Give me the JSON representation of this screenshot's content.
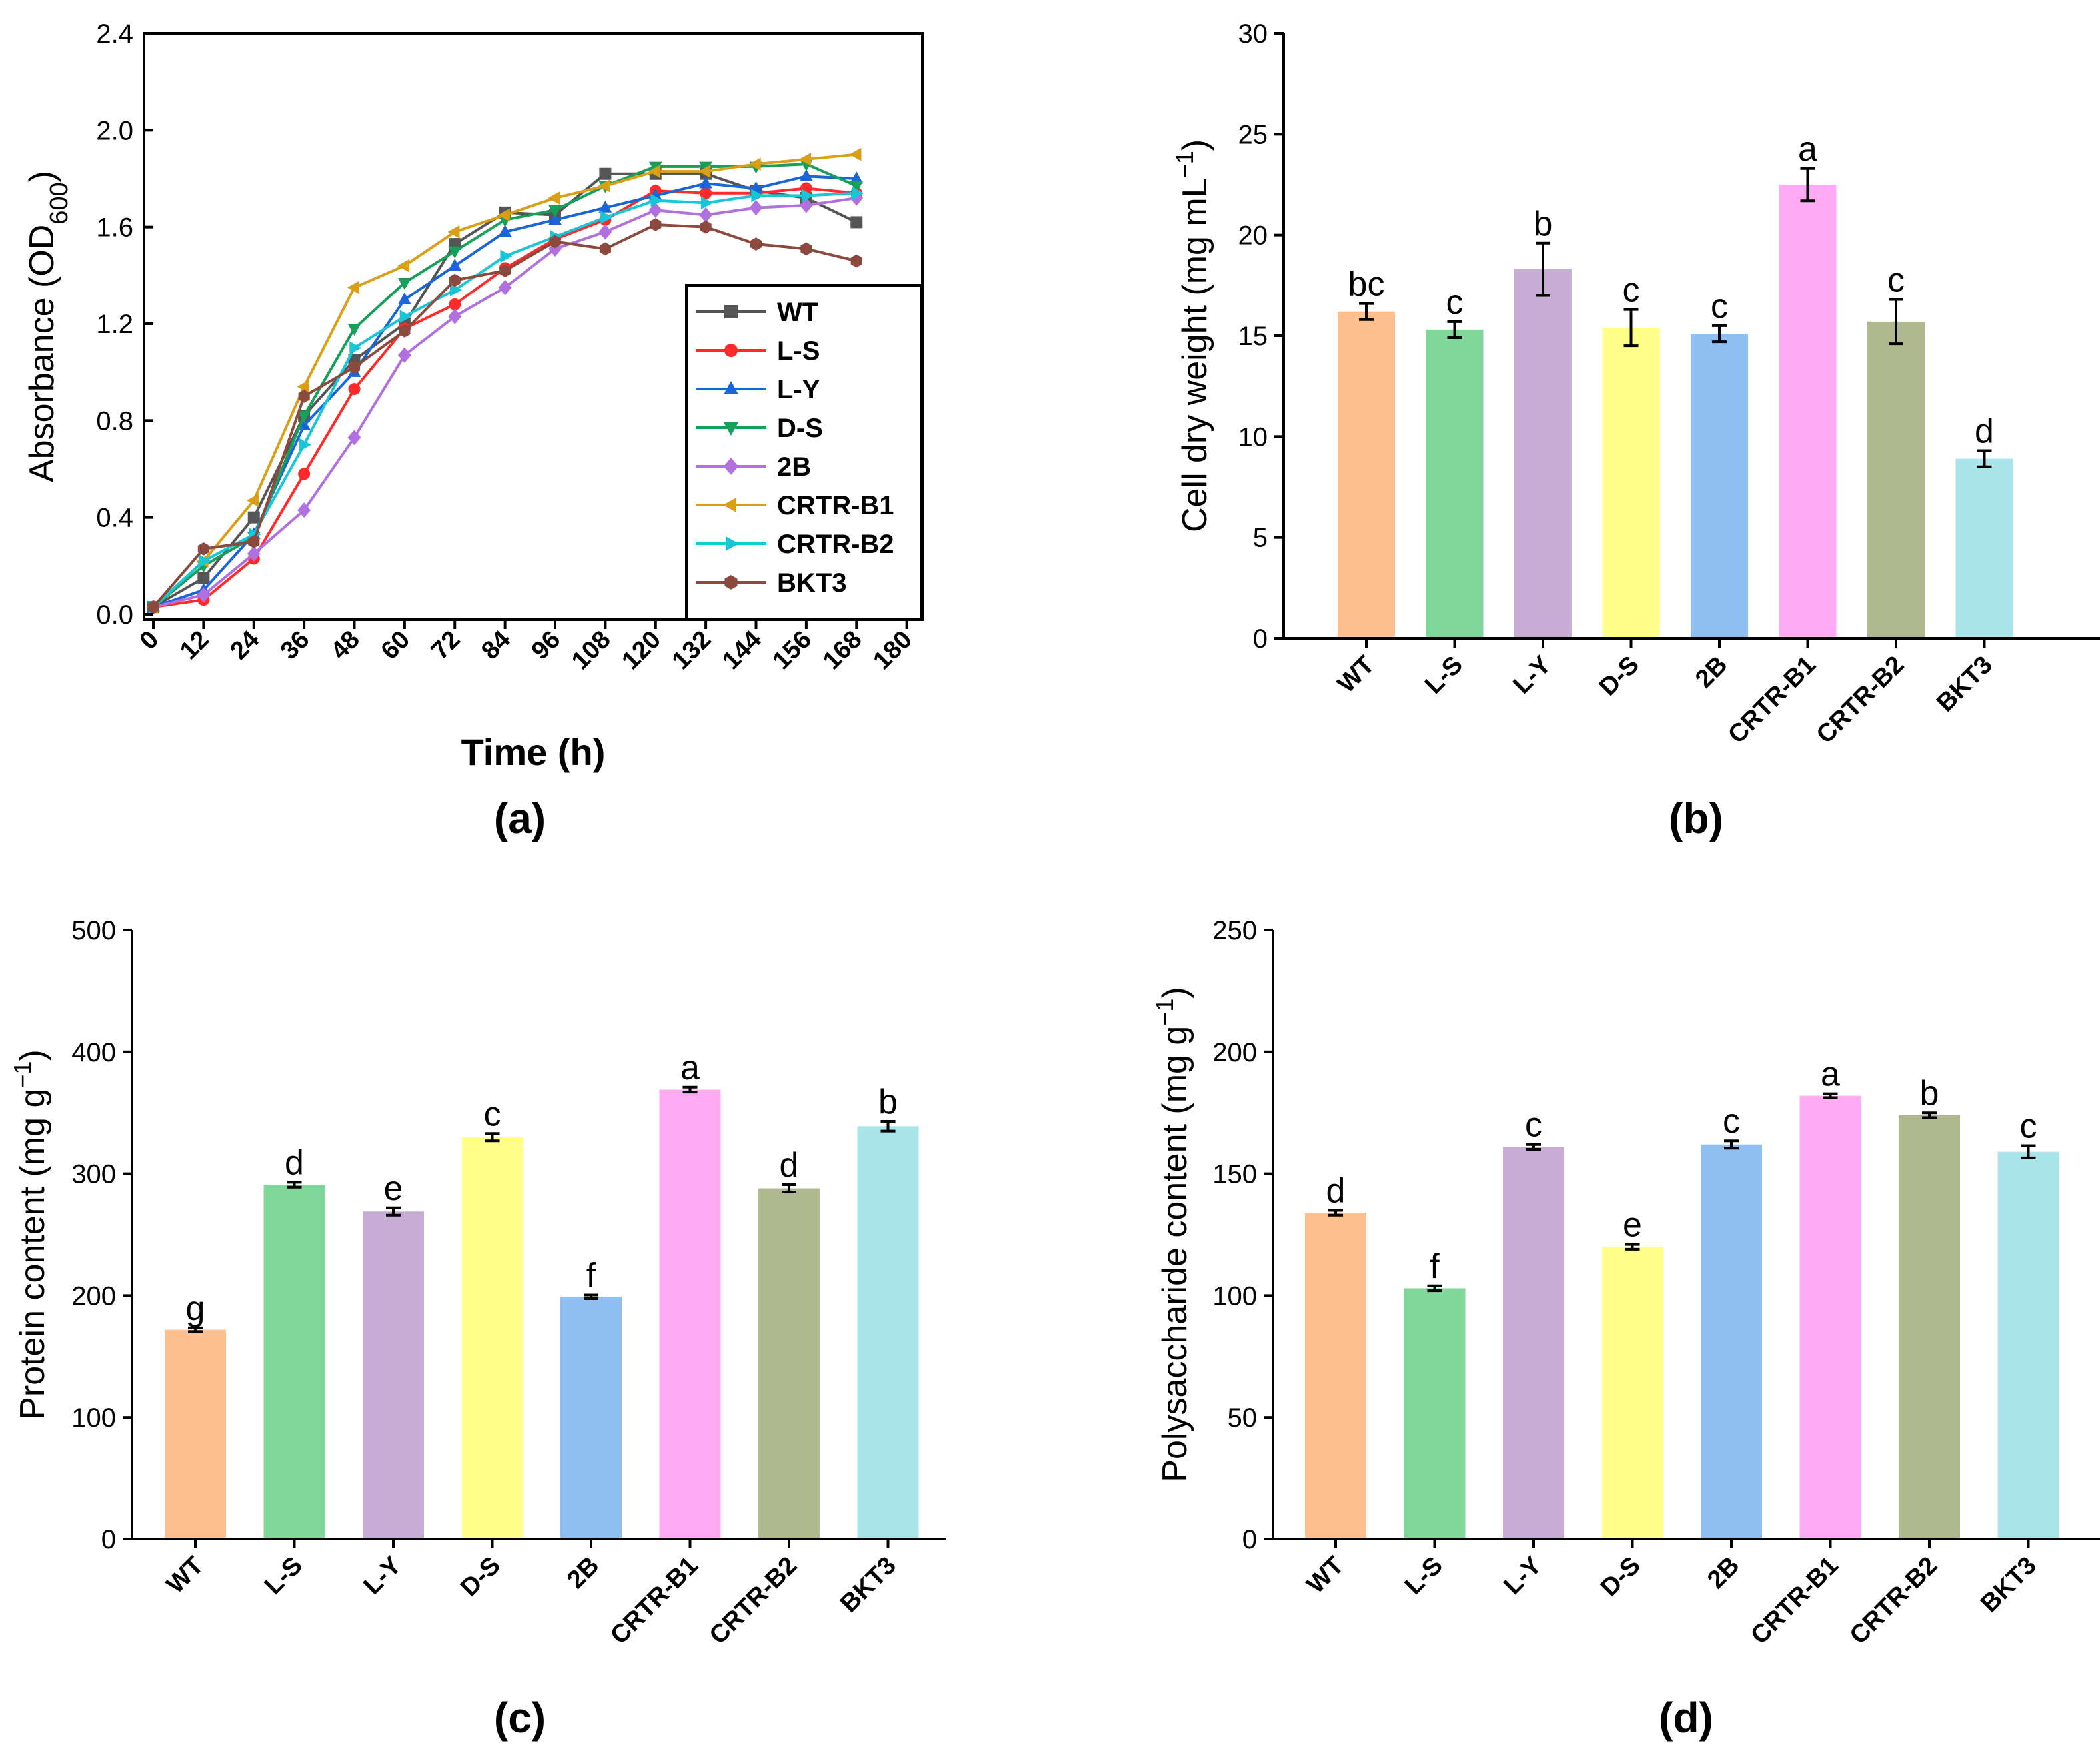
{
  "chart_data": [
    {
      "type": "line",
      "panel": "(a)",
      "xlabel": "Time (h)",
      "ylabel_main": "Absorbance (OD",
      "ylabel_sub": "600",
      "ylabel_close": ")",
      "xlim": [
        0,
        180
      ],
      "ylim": [
        0,
        2.4
      ],
      "x_ticks": [
        "0",
        "12",
        "24",
        "36",
        "48",
        "60",
        "72",
        "84",
        "96",
        "108",
        "120",
        "132",
        "144",
        "156",
        "168",
        "180"
      ],
      "y_ticks": [
        "0.0",
        "0.4",
        "0.8",
        "1.2",
        "1.6",
        "2.0",
        "2.4"
      ],
      "x": [
        0,
        12,
        24,
        36,
        48,
        60,
        72,
        84,
        96,
        108,
        120,
        132,
        144,
        156,
        168
      ],
      "series": [
        {
          "name": "WT",
          "color": "#555555",
          "marker": "square",
          "values": [
            0.03,
            0.15,
            0.4,
            0.82,
            1.05,
            1.2,
            1.53,
            1.66,
            1.65,
            1.82,
            1.82,
            1.82,
            1.75,
            1.72,
            1.62
          ]
        },
        {
          "name": "L-S",
          "color": "#ff2a2a",
          "marker": "circle",
          "values": [
            0.03,
            0.06,
            0.23,
            0.58,
            0.93,
            1.18,
            1.28,
            1.43,
            1.55,
            1.63,
            1.75,
            1.74,
            1.74,
            1.76,
            1.74
          ]
        },
        {
          "name": "L-Y",
          "color": "#1a66d9",
          "marker": "triangle-up",
          "values": [
            0.03,
            0.1,
            0.33,
            0.78,
            1.0,
            1.3,
            1.44,
            1.58,
            1.63,
            1.68,
            1.73,
            1.78,
            1.76,
            1.81,
            1.8
          ]
        },
        {
          "name": "D-S",
          "color": "#17a05a",
          "marker": "triangle-down",
          "values": [
            0.03,
            0.2,
            0.32,
            0.82,
            1.18,
            1.37,
            1.5,
            1.63,
            1.67,
            1.77,
            1.85,
            1.85,
            1.85,
            1.86,
            1.77
          ]
        },
        {
          "name": "2B",
          "color": "#b070e0",
          "marker": "diamond",
          "values": [
            0.03,
            0.08,
            0.25,
            0.43,
            0.73,
            1.07,
            1.23,
            1.35,
            1.51,
            1.58,
            1.67,
            1.65,
            1.68,
            1.69,
            1.72
          ]
        },
        {
          "name": "CRTR-B1",
          "color": "#d9a017",
          "marker": "triangle-left",
          "values": [
            0.03,
            0.22,
            0.47,
            0.94,
            1.35,
            1.44,
            1.58,
            1.65,
            1.72,
            1.77,
            1.83,
            1.83,
            1.86,
            1.88,
            1.9
          ]
        },
        {
          "name": "CRTR-B2",
          "color": "#18c6d8",
          "marker": "triangle-right",
          "values": [
            0.03,
            0.22,
            0.33,
            0.7,
            1.1,
            1.23,
            1.34,
            1.48,
            1.56,
            1.64,
            1.71,
            1.7,
            1.73,
            1.73,
            1.74
          ]
        },
        {
          "name": "BKT3",
          "color": "#8c4a3e",
          "marker": "hexagon",
          "values": [
            0.03,
            0.27,
            0.3,
            0.9,
            1.02,
            1.17,
            1.38,
            1.42,
            1.54,
            1.51,
            1.61,
            1.6,
            1.53,
            1.51,
            1.46
          ]
        }
      ]
    },
    {
      "type": "bar",
      "panel": "(b)",
      "ylabel_main": "Cell dry weight (mg mL",
      "ylabel_sup": "−1",
      "ylabel_close": ")",
      "ylim": [
        0,
        30
      ],
      "y_ticks": [
        "0",
        "5",
        "10",
        "15",
        "20",
        "25",
        "30"
      ],
      "categories": [
        "WT",
        "L-S",
        "L-Y",
        "D-S",
        "2B",
        "CRTR-B1",
        "CRTR-B2",
        "BKT3"
      ],
      "values": [
        16.2,
        15.3,
        18.3,
        15.4,
        15.1,
        22.5,
        15.7,
        8.9
      ],
      "errors": [
        0.4,
        0.4,
        1.3,
        0.9,
        0.4,
        0.8,
        1.1,
        0.4
      ],
      "letters": [
        "bc",
        "c",
        "b",
        "c",
        "c",
        "a",
        "c",
        "d"
      ],
      "colors": [
        "#ffc08f",
        "#7fd89a",
        "#c7add6",
        "#ffff8a",
        "#8fbff2",
        "#ffaaf2",
        "#afb88d",
        "#a8e4ea"
      ]
    },
    {
      "type": "bar",
      "panel": "(c)",
      "ylabel_main": "Protein content (mg g",
      "ylabel_sup": "−1",
      "ylabel_close": ")",
      "ylim": [
        0,
        500
      ],
      "y_ticks": [
        "0",
        "100",
        "200",
        "300",
        "400",
        "500"
      ],
      "categories": [
        "WT",
        "L-S",
        "L-Y",
        "D-S",
        "2B",
        "CRTR-B1",
        "CRTR-B2",
        "BKT3"
      ],
      "values": [
        172,
        291,
        269,
        330,
        199,
        369,
        288,
        339
      ],
      "errors": [
        1.5,
        2,
        3,
        3,
        1.5,
        2,
        3,
        4
      ],
      "letters": [
        "g",
        "d",
        "e",
        "c",
        "f",
        "a",
        "d",
        "b"
      ],
      "colors": [
        "#ffc08f",
        "#7fd89a",
        "#c7add6",
        "#ffff8a",
        "#8fbff2",
        "#ffaaf2",
        "#afb88d",
        "#a8e4ea"
      ]
    },
    {
      "type": "bar",
      "panel": "(d)",
      "ylabel_main": "Polysaccharide content (mg g",
      "ylabel_sup": "−1",
      "ylabel_close": ")",
      "ylim": [
        0,
        250
      ],
      "y_ticks": [
        "0",
        "50",
        "100",
        "150",
        "200",
        "250"
      ],
      "categories": [
        "WT",
        "L-S",
        "L-Y",
        "D-S",
        "2B",
        "CRTR-B1",
        "CRTR-B2",
        "BKT3"
      ],
      "values": [
        134,
        103,
        161,
        120,
        162,
        182,
        174,
        159
      ],
      "errors": [
        1,
        1,
        1,
        1,
        1.5,
        0.8,
        1,
        2.5
      ],
      "letters": [
        "d",
        "f",
        "c",
        "e",
        "c",
        "a",
        "b",
        "c"
      ],
      "colors": [
        "#ffc08f",
        "#7fd89a",
        "#c7add6",
        "#ffff8a",
        "#8fbff2",
        "#ffaaf2",
        "#afb88d",
        "#a8e4ea"
      ]
    }
  ]
}
